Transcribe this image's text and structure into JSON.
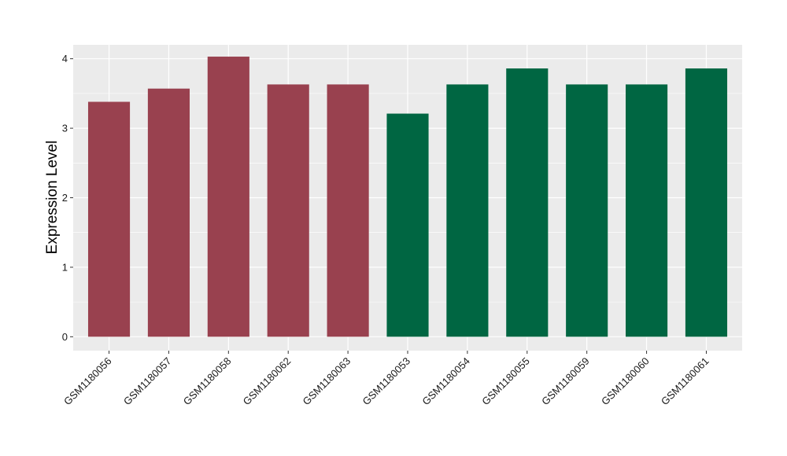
{
  "chart_data": {
    "type": "bar",
    "title": "",
    "xlabel": "",
    "ylabel": "Expression Level",
    "ylim": [
      -0.2,
      4.2
    ],
    "yticks": [
      0,
      1,
      2,
      3,
      4
    ],
    "grid": true,
    "legend": "none",
    "categories": [
      "GSM1180056",
      "GSM1180057",
      "GSM1180058",
      "GSM1180062",
      "GSM1180063",
      "GSM1180053",
      "GSM1180054",
      "GSM1180055",
      "GSM1180059",
      "GSM1180060",
      "GSM1180061"
    ],
    "values": [
      3.38,
      3.57,
      4.03,
      3.63,
      3.63,
      3.21,
      3.63,
      3.86,
      3.63,
      3.63,
      3.86
    ],
    "bar_colors": [
      "#99414f",
      "#99414f",
      "#99414f",
      "#99414f",
      "#99414f",
      "#006642",
      "#006642",
      "#006642",
      "#006642",
      "#006642",
      "#006642"
    ],
    "panel_color": "#ebebeb",
    "grid_color": "#ffffff"
  }
}
